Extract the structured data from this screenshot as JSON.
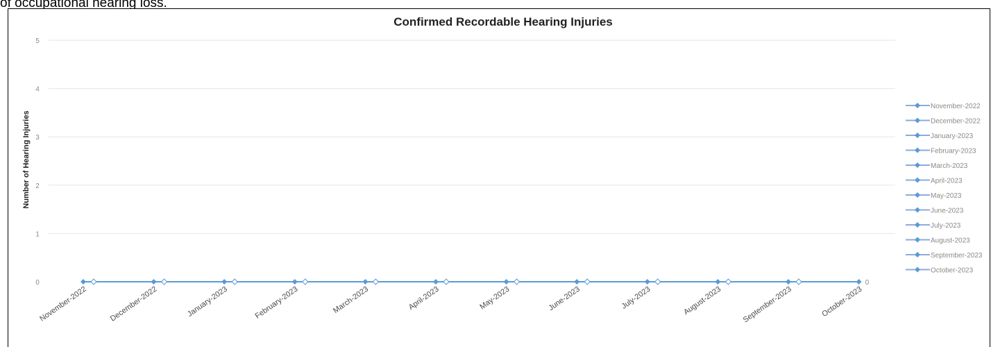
{
  "page": {
    "caption_fragment": "of occupational hearing loss."
  },
  "colors": {
    "series_line": "#5b9bd5",
    "grid": "#e6e6e6",
    "legend_line": "#8faadc"
  },
  "chart_data": {
    "type": "line",
    "title": "Confirmed Recordable Hearing Injuries",
    "xlabel": "",
    "ylabel": "Number of Hearing Injuries",
    "ylim": [
      0,
      5
    ],
    "yticks": [
      0,
      1,
      2,
      3,
      4,
      5
    ],
    "grid": true,
    "legend_position": "right",
    "categories": [
      "November-2022",
      "December-2022",
      "January-2023",
      "February-2023",
      "March-2023",
      "April-2023",
      "May-2023",
      "June-2023",
      "July-2023",
      "August-2023",
      "September-2023",
      "October-2023"
    ],
    "values": [
      0,
      0,
      0,
      0,
      0,
      0,
      0,
      0,
      0,
      0,
      0,
      0
    ],
    "legend": [
      "November-2022",
      "December-2022",
      "January-2023",
      "February-2023",
      "March-2023",
      "April-2023",
      "May-2023",
      "June-2023",
      "July-2023",
      "August-2023",
      "September-2023",
      "October-2023"
    ],
    "data_labels": [
      {
        "category": "October-2023",
        "text": "0"
      }
    ]
  }
}
